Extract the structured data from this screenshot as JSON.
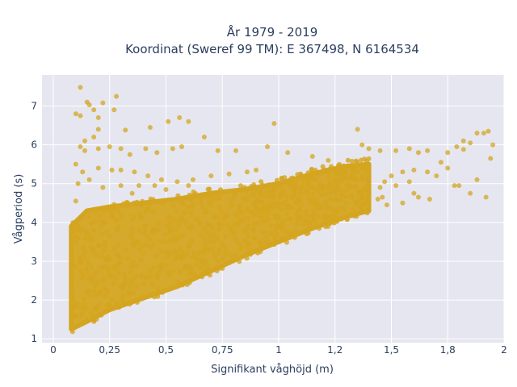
{
  "chart_data": {
    "type": "scatter",
    "title_line1": "År 1979 - 2019",
    "title_line2": "Koordinat (Sweref 99 TM): E 367498, N 6164534",
    "xlabel": "Signifikant våghöjd (m)",
    "ylabel": "Vågperiod (s)",
    "xlim": [
      -0.05,
      2.0
    ],
    "ylim": [
      0.9,
      7.8
    ],
    "x_ticks": [
      0,
      0.25,
      0.5,
      0.75,
      1,
      1.25,
      1.5,
      1.75,
      2
    ],
    "x_tick_labels": [
      "0",
      "0,25",
      "0,5",
      "0,75",
      "1",
      "1,2",
      "1,5",
      "1,8",
      "2"
    ],
    "y_ticks": [
      1,
      2,
      3,
      4,
      5,
      6,
      7
    ],
    "y_tick_labels": [
      "1",
      "2",
      "3",
      "4",
      "5",
      "6",
      "7"
    ],
    "grid": true,
    "marker_color": "#D4A520",
    "background_color": "#E5E6F0",
    "dense_band": [
      {
        "x": 0.08,
        "y_low": 1.25,
        "y_high": 3.9
      },
      {
        "x": 0.15,
        "y_low": 1.45,
        "y_high": 4.3
      },
      {
        "x": 0.25,
        "y_low": 1.75,
        "y_high": 4.4
      },
      {
        "x": 0.4,
        "y_low": 2.05,
        "y_high": 4.5
      },
      {
        "x": 0.55,
        "y_low": 2.35,
        "y_high": 4.6
      },
      {
        "x": 0.7,
        "y_low": 2.75,
        "y_high": 4.75
      },
      {
        "x": 0.85,
        "y_low": 3.15,
        "y_high": 4.85
      },
      {
        "x": 1.0,
        "y_low": 3.5,
        "y_high": 5.0
      },
      {
        "x": 1.15,
        "y_low": 3.85,
        "y_high": 5.25
      },
      {
        "x": 1.3,
        "y_low": 4.15,
        "y_high": 5.45
      },
      {
        "x": 1.4,
        "y_low": 4.3,
        "y_high": 5.5
      }
    ],
    "scattered_points": [
      [
        0.12,
        7.48
      ],
      [
        0.15,
        7.1
      ],
      [
        0.16,
        7.03
      ],
      [
        0.18,
        6.9
      ],
      [
        0.22,
        7.08
      ],
      [
        0.28,
        7.25
      ],
      [
        0.1,
        6.8
      ],
      [
        0.12,
        6.75
      ],
      [
        0.2,
        6.7
      ],
      [
        0.27,
        6.9
      ],
      [
        0.32,
        6.38
      ],
      [
        0.2,
        6.4
      ],
      [
        0.18,
        6.2
      ],
      [
        0.14,
        6.1
      ],
      [
        0.43,
        6.45
      ],
      [
        0.51,
        6.6
      ],
      [
        0.56,
        6.7
      ],
      [
        0.6,
        6.6
      ],
      [
        0.67,
        6.2
      ],
      [
        0.98,
        6.55
      ],
      [
        0.12,
        5.95
      ],
      [
        0.14,
        5.85
      ],
      [
        0.2,
        5.9
      ],
      [
        0.25,
        5.95
      ],
      [
        0.3,
        5.9
      ],
      [
        0.34,
        5.75
      ],
      [
        0.41,
        5.9
      ],
      [
        0.46,
        5.8
      ],
      [
        0.53,
        5.9
      ],
      [
        0.57,
        5.95
      ],
      [
        0.73,
        5.85
      ],
      [
        0.81,
        5.85
      ],
      [
        0.95,
        5.95
      ],
      [
        1.04,
        5.8
      ],
      [
        1.15,
        5.7
      ],
      [
        1.22,
        5.6
      ],
      [
        1.35,
        6.4
      ],
      [
        1.37,
        6.0
      ],
      [
        1.4,
        5.9
      ],
      [
        1.45,
        5.85
      ],
      [
        1.52,
        5.85
      ],
      [
        1.58,
        5.9
      ],
      [
        1.62,
        5.8
      ],
      [
        1.66,
        5.85
      ],
      [
        1.75,
        5.8
      ],
      [
        1.79,
        5.95
      ],
      [
        1.82,
        6.1
      ],
      [
        1.85,
        6.05
      ],
      [
        1.88,
        6.3
      ],
      [
        1.91,
        6.3
      ],
      [
        1.93,
        6.35
      ],
      [
        1.95,
        6.0
      ],
      [
        1.94,
        5.65
      ],
      [
        1.82,
        5.88
      ],
      [
        1.88,
        5.1
      ],
      [
        1.78,
        4.95
      ],
      [
        1.8,
        4.95
      ],
      [
        1.85,
        4.75
      ],
      [
        1.92,
        4.65
      ],
      [
        1.67,
        4.6
      ],
      [
        1.62,
        4.65
      ],
      [
        1.6,
        4.75
      ],
      [
        1.55,
        4.5
      ],
      [
        1.48,
        4.45
      ],
      [
        1.46,
        4.65
      ],
      [
        1.44,
        4.6
      ],
      [
        1.39,
        4.55
      ],
      [
        1.36,
        4.45
      ],
      [
        1.32,
        4.2
      ],
      [
        1.3,
        4.5
      ],
      [
        1.25,
        4.1
      ],
      [
        1.21,
        4.2
      ],
      [
        1.13,
        3.95
      ],
      [
        1.08,
        3.95
      ],
      [
        0.99,
        3.7
      ],
      [
        0.93,
        3.5
      ],
      [
        0.86,
        3.4
      ],
      [
        0.77,
        3.2
      ],
      [
        0.68,
        3.0
      ],
      [
        1.6,
        5.35
      ],
      [
        1.66,
        5.3
      ],
      [
        1.7,
        5.2
      ],
      [
        1.75,
        5.4
      ],
      [
        1.72,
        5.55
      ],
      [
        1.55,
        5.3
      ],
      [
        1.5,
        5.2
      ],
      [
        1.47,
        5.05
      ],
      [
        1.45,
        4.9
      ],
      [
        1.52,
        4.95
      ],
      [
        1.58,
        5.05
      ],
      [
        0.2,
        5.4
      ],
      [
        0.26,
        5.35
      ],
      [
        0.3,
        5.35
      ],
      [
        0.36,
        5.3
      ],
      [
        0.42,
        5.2
      ],
      [
        0.48,
        5.1
      ],
      [
        0.55,
        5.05
      ],
      [
        0.62,
        5.1
      ],
      [
        0.7,
        5.2
      ],
      [
        0.78,
        5.25
      ],
      [
        0.86,
        5.3
      ],
      [
        0.9,
        5.35
      ],
      [
        0.1,
        5.5
      ],
      [
        0.13,
        5.3
      ],
      [
        0.16,
        5.1
      ],
      [
        0.11,
        5.0
      ],
      [
        0.1,
        4.55
      ],
      [
        0.22,
        4.9
      ],
      [
        0.3,
        4.95
      ],
      [
        0.38,
        4.95
      ],
      [
        0.45,
        4.95
      ],
      [
        0.35,
        4.75
      ],
      [
        0.5,
        4.85
      ],
      [
        0.6,
        4.95
      ]
    ]
  }
}
